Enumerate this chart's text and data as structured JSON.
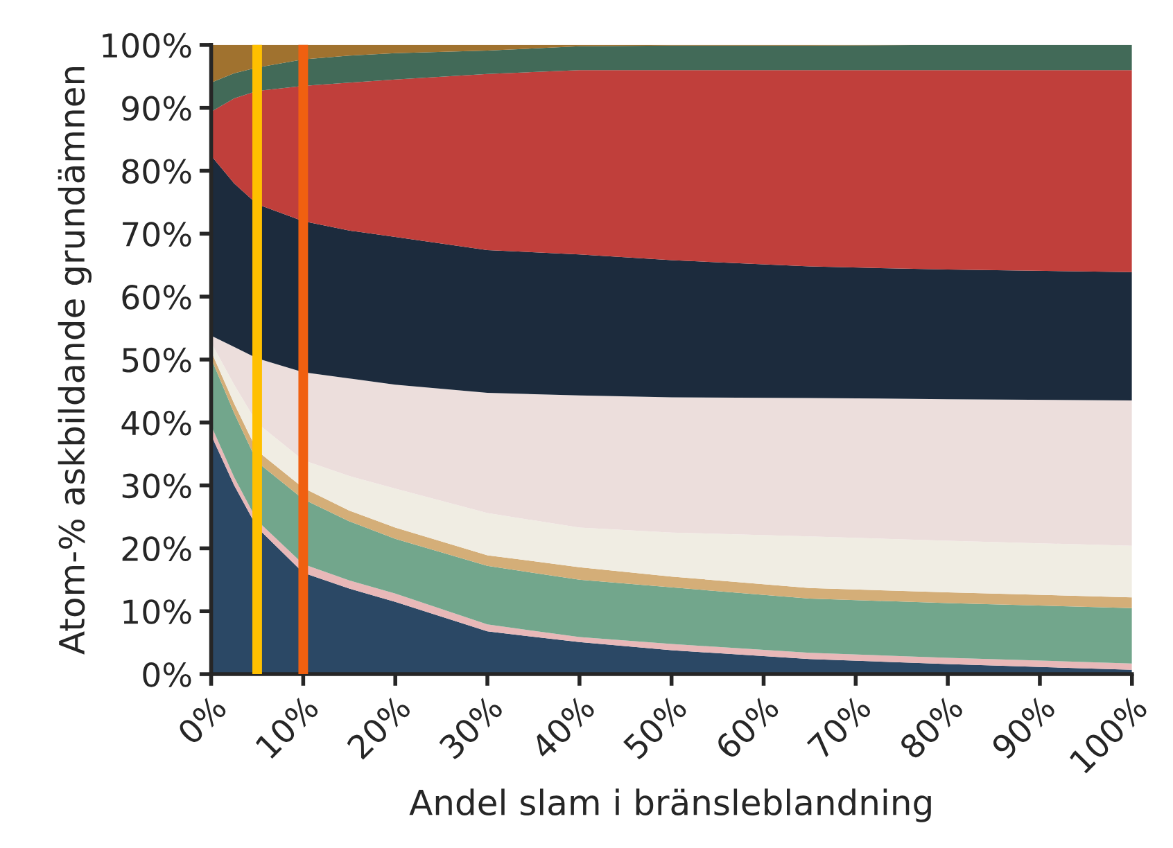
{
  "chart_data": {
    "type": "area",
    "stacked": true,
    "xlabel": "Andel slam i bränsleblandning",
    "ylabel": "Atom-% askbildande grundämnen",
    "x": [
      0,
      2.5,
      5,
      10,
      15,
      20,
      30,
      40,
      50,
      65,
      80,
      100
    ],
    "series": [
      {
        "color": "#2b4865",
        "values": [
          38,
          30,
          23.3,
          16.1,
          13.6,
          11.5,
          6.8,
          5.1,
          3.8,
          2.4,
          1.6,
          0.7
        ]
      },
      {
        "color": "#e8b8b8",
        "values": [
          1.5,
          1.3,
          1.1,
          1.4,
          1.3,
          1.3,
          1.1,
          0.8,
          1,
          1,
          1,
          1
        ]
      },
      {
        "color": "#72a68c",
        "values": [
          10.7,
          10.2,
          9.3,
          10.3,
          9.4,
          8.7,
          9.3,
          9.1,
          9,
          8.6,
          8.7,
          8.8
        ]
      },
      {
        "color": "#d4ae78",
        "values": [
          1.1,
          1.5,
          1.8,
          1.8,
          1.7,
          1.8,
          1.7,
          2,
          1.7,
          1.7,
          1.7,
          1.7
        ]
      },
      {
        "color": "#f0ede3",
        "values": [
          1.4,
          3,
          4.4,
          4.4,
          5.5,
          6.2,
          6.7,
          6.3,
          7,
          8.2,
          8.2,
          8.2
        ]
      },
      {
        "color": "#ecdedc",
        "values": [
          1.1,
          6,
          10.3,
          14,
          15.5,
          16.5,
          19.1,
          21,
          21.5,
          22,
          22.5,
          23.1
        ]
      },
      {
        "color": "#1c2b3d",
        "values": [
          28.6,
          26,
          24.5,
          24,
          23.5,
          23.5,
          22.7,
          22.4,
          21.8,
          20.9,
          20.6,
          20.4
        ]
      },
      {
        "color": "#c03f3b",
        "values": [
          7,
          13.5,
          18,
          21.5,
          23.5,
          25,
          28,
          29.3,
          30.2,
          31.2,
          31.7,
          32.1
        ]
      },
      {
        "color": "#426a58",
        "values": [
          4.6,
          4,
          3.7,
          4.2,
          4.3,
          4.2,
          3.7,
          3.8,
          3.9,
          3.9,
          4,
          4
        ]
      },
      {
        "color": "#a0722f",
        "values": [
          6,
          4.5,
          3.6,
          2.3,
          1.7,
          1.3,
          0.9,
          0.2,
          0.1,
          0.1,
          0,
          0
        ]
      }
    ],
    "xlim": [
      0,
      100
    ],
    "ylim": [
      0,
      100
    ],
    "xticks": [
      {
        "value": 0,
        "label": "0%"
      },
      {
        "value": 10,
        "label": "10%"
      },
      {
        "value": 20,
        "label": "20%"
      },
      {
        "value": 30,
        "label": "30%"
      },
      {
        "value": 40,
        "label": "40%"
      },
      {
        "value": 50,
        "label": "50%"
      },
      {
        "value": 60,
        "label": "60%"
      },
      {
        "value": 70,
        "label": "70%"
      },
      {
        "value": 80,
        "label": "80%"
      },
      {
        "value": 90,
        "label": "90%"
      },
      {
        "value": 100,
        "label": "100%"
      }
    ],
    "yticks": [
      {
        "value": 0,
        "label": "0%"
      },
      {
        "value": 10,
        "label": "10%"
      },
      {
        "value": 20,
        "label": "20%"
      },
      {
        "value": 30,
        "label": "30%"
      },
      {
        "value": 40,
        "label": "40%"
      },
      {
        "value": 50,
        "label": "50%"
      },
      {
        "value": 60,
        "label": "60%"
      },
      {
        "value": 70,
        "label": "70%"
      },
      {
        "value": 80,
        "label": "80%"
      },
      {
        "value": 90,
        "label": "90%"
      },
      {
        "value": 100,
        "label": "100%"
      }
    ],
    "ref_lines": [
      {
        "axis": "x",
        "value": 5,
        "color": "#ffc000"
      },
      {
        "axis": "x",
        "value": 10,
        "color": "#f06010"
      }
    ],
    "grid": false,
    "legend": false
  }
}
